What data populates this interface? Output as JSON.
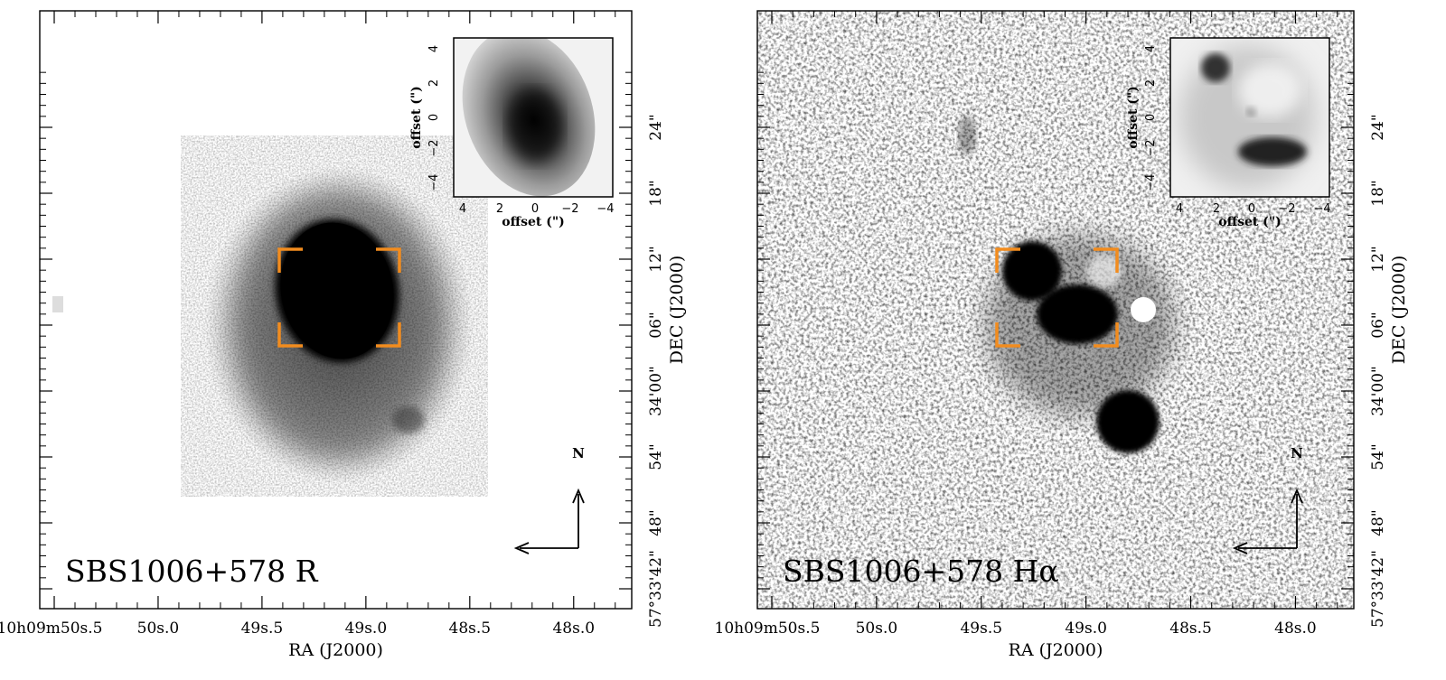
{
  "figure": {
    "panels": [
      {
        "id": "left",
        "label": "SBS1006+578  R",
        "ra_axis_label": "RA (J2000)",
        "dec_axis_label": "DEC (J2000)",
        "ra_tick_labels": [
          "10h09m50s.5",
          "50s.0",
          "49s.5",
          "49s.0",
          "48s.5",
          "48s.0"
        ],
        "dec_tick_labels": [
          "57°33'42\"",
          "48\"",
          "54\"",
          "34'00\"",
          "06\"",
          "12\"",
          "18\"",
          "24\""
        ],
        "compass_label": "N",
        "inset": {
          "xlabel": "offset (\")",
          "ylabel": "offset (\")",
          "x_ticks": [
            "4",
            "2",
            "0",
            "−2",
            "−4"
          ],
          "y_ticks": [
            "−4",
            "−2",
            "0",
            "2",
            "4"
          ]
        }
      },
      {
        "id": "right",
        "label": "SBS1006+578  Hα",
        "ra_axis_label": "RA (J2000)",
        "dec_axis_label": "DEC (J2000)",
        "ra_tick_labels": [
          "10h09m50s.5",
          "50s.0",
          "49s.5",
          "49s.0",
          "48s.5",
          "48s.0"
        ],
        "dec_tick_labels": [
          "57°33'42\"",
          "48\"",
          "54\"",
          "34'00\"",
          "06\"",
          "12\"",
          "18\"",
          "24\""
        ],
        "compass_label": "N",
        "inset": {
          "xlabel": "offset (\")",
          "ylabel": "offset (\")",
          "x_ticks": [
            "4",
            "2",
            "0",
            "−2",
            "−4"
          ],
          "y_ticks": [
            "−4",
            "−2",
            "0",
            "2",
            "4"
          ]
        }
      }
    ],
    "bracket_color": "#f28c1e"
  }
}
